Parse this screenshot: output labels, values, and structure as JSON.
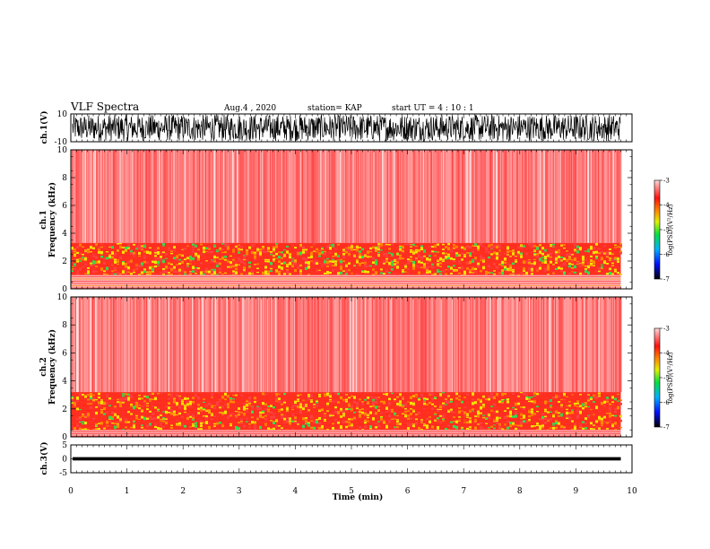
{
  "header": {
    "title": "VLF Spectra",
    "date": "Aug.4 , 2020",
    "station": "station= KAP",
    "start": "start UT = 4 : 10 : 1"
  },
  "chart_data": [
    {
      "type": "line",
      "name": "ch1-waveform",
      "ylabel": "ch.1(V)",
      "ylim": [
        -10,
        10
      ],
      "ytick_labels": [
        "-10",
        "10"
      ],
      "xlim": [
        0,
        10
      ]
    },
    {
      "type": "heatmap",
      "name": "ch1-spectrogram",
      "ylabel": "ch.1\nFrequency (kHz)",
      "ylabel_lines": [
        "ch.1",
        "Frequency (kHz)"
      ],
      "ylim": [
        0,
        10
      ],
      "yticks": [
        0,
        2,
        4,
        6,
        8,
        10
      ],
      "xlim": [
        0,
        10
      ],
      "data_end_min": 9.8,
      "intense_band_khz": [
        1,
        3.3
      ],
      "colorbar": {
        "label": "log(PSD)(V²/Hz)",
        "range": [
          -7,
          -3
        ],
        "ticks": [
          "-3",
          "-4",
          "-5",
          "-6",
          "-7"
        ]
      }
    },
    {
      "type": "heatmap",
      "name": "ch2-spectrogram",
      "ylabel": "ch.2\nFrequency (kHz)",
      "ylabel_lines": [
        "ch.2",
        "Frequency (kHz)"
      ],
      "ylim": [
        0,
        10
      ],
      "yticks": [
        0,
        2,
        4,
        6,
        8,
        10
      ],
      "xlim": [
        0,
        10
      ],
      "data_end_min": 9.8,
      "intense_band_khz": [
        0.5,
        3.2
      ],
      "colorbar": {
        "label": "log(PSD)(V²/Hz)",
        "range": [
          -7,
          -3
        ],
        "ticks": [
          "-3",
          "-4",
          "-5",
          "-6",
          "-7"
        ]
      }
    },
    {
      "type": "line",
      "name": "ch3-waveform",
      "ylabel": "ch.3(V)",
      "ylim": [
        -5,
        5
      ],
      "yticks": [
        -5,
        0,
        5
      ],
      "ytick_labels": [
        "-5",
        "0",
        "5"
      ],
      "xlim": [
        0,
        10
      ],
      "xticks": [
        0,
        1,
        2,
        3,
        4,
        5,
        6,
        7,
        8,
        9,
        10
      ],
      "xlabel": "Time (min)"
    }
  ],
  "colors": {
    "red": "#ff2020",
    "orange": "#ff8a00",
    "yellow": "#f4e400",
    "green": "#30e050",
    "blue": "#0030ff",
    "black": "#000000"
  }
}
